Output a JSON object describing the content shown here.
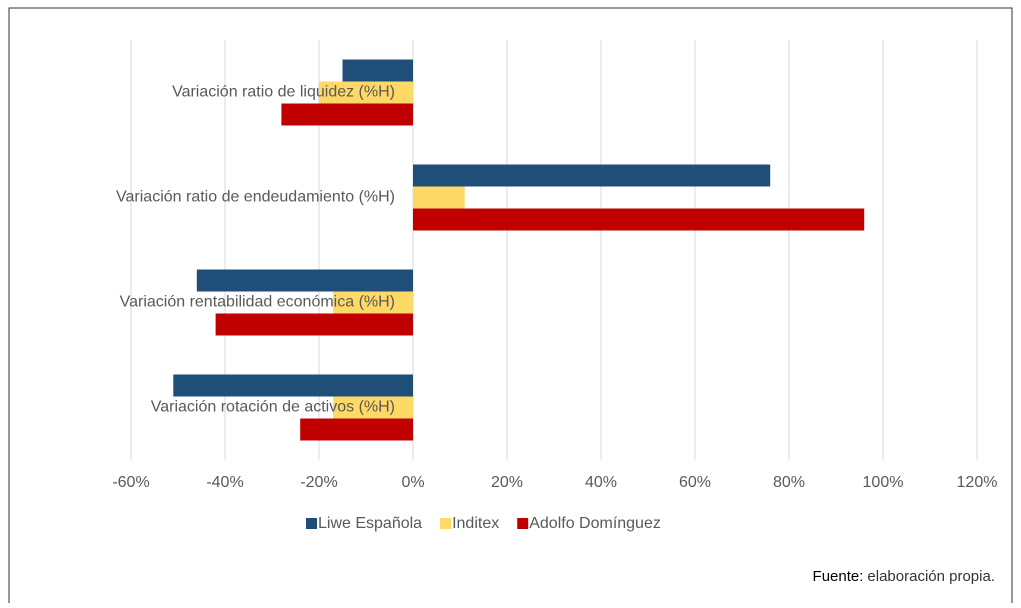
{
  "chart_data": {
    "type": "barh",
    "categories": [
      "Variación ratio de liquidez (%H)",
      "Variación ratio de endeudamiento (%H)",
      "Variación rentabilidad económica  (%H)",
      "Variación rotación de activos (%H)"
    ],
    "series": [
      {
        "name": "Liwe Española",
        "color": "#1f4e79",
        "values": [
          -15,
          76,
          -46,
          -51
        ]
      },
      {
        "name": "Inditex",
        "color": "#ffd966",
        "values": [
          -20,
          11,
          -17,
          -17
        ]
      },
      {
        "name": "Adolfo Domínguez",
        "color": "#c00000",
        "values": [
          -28,
          96,
          -42,
          -24
        ]
      }
    ],
    "xlim": [
      -60,
      120
    ],
    "xticks": [
      {
        "value": -60,
        "label": "-60%"
      },
      {
        "value": -40,
        "label": "-40%"
      },
      {
        "value": -20,
        "label": "-20%"
      },
      {
        "value": 0,
        "label": "0%"
      },
      {
        "value": 20,
        "label": "20%"
      },
      {
        "value": 40,
        "label": "40%"
      },
      {
        "value": 60,
        "label": "60%"
      },
      {
        "value": 80,
        "label": "80%"
      },
      {
        "value": 100,
        "label": "100%"
      },
      {
        "value": 120,
        "label": "120%"
      }
    ],
    "grid": true,
    "legend": "bottom"
  },
  "source": {
    "label": "Fuente:",
    "text": "elaboración propia."
  }
}
